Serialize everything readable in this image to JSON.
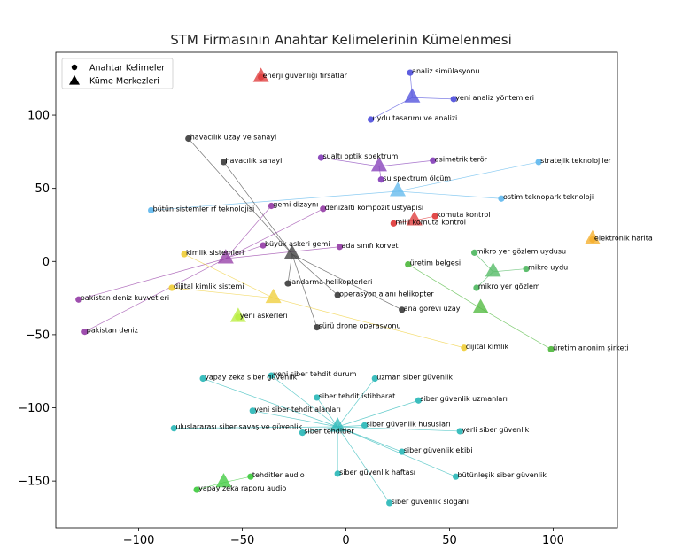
{
  "chart_data": {
    "type": "scatter",
    "title": "STM Firmasının Anahtar Kelimelerinin Kümelenmesi",
    "xlabel": "",
    "ylabel": "",
    "xlim": [
      -140,
      131
    ],
    "ylim": [
      -182,
      143
    ],
    "x_ticks": [
      -100,
      -50,
      0,
      50,
      100
    ],
    "y_ticks": [
      -150,
      -100,
      -50,
      0,
      50,
      100
    ],
    "x_tick_labels": [
      "−100",
      "−50",
      "0",
      "50",
      "100"
    ],
    "y_tick_labels": [
      "−150",
      "−100",
      "−50",
      "0",
      "50",
      "100"
    ],
    "grid": false,
    "legend": {
      "placement": "top-left",
      "items": [
        {
          "label": "Anahtar Kelimeler",
          "marker": "circle"
        },
        {
          "label": "Küme Merkezleri",
          "marker": "triangle"
        }
      ]
    },
    "clusters": [
      {
        "color": "#e04040",
        "center": [
          -41,
          126
        ],
        "points": [
          {
            "label": "enerji güvenliği fırsatlar",
            "x": -41,
            "y": 126
          }
        ]
      },
      {
        "color": "#5555dd",
        "center": [
          32,
          112
        ],
        "points": [
          {
            "label": "analiz simülasyonu",
            "x": 31,
            "y": 129
          },
          {
            "label": "yeni analiz yöntemleri",
            "x": 52,
            "y": 111
          },
          {
            "label": "uydu tasarımı ve analizi",
            "x": 12,
            "y": 97
          }
        ]
      },
      {
        "color": "#8844bb",
        "center": [
          16,
          65
        ],
        "points": [
          {
            "label": "sualtı optik spektrum",
            "x": -12,
            "y": 71
          },
          {
            "label": "asimetrik terör",
            "x": 42,
            "y": 69
          },
          {
            "label": "su spektrum ölçüm",
            "x": 17,
            "y": 56
          }
        ]
      },
      {
        "color": "#66bbee",
        "center": [
          25,
          48
        ],
        "points": [
          {
            "label": "stratejik teknolojiler",
            "x": 93,
            "y": 68
          },
          {
            "label": "ostim teknopark teknoloji",
            "x": 75,
            "y": 43
          },
          {
            "label": "bütün sistemler rf teknolojisi",
            "x": -94,
            "y": 35
          }
        ]
      },
      {
        "color": "#e04040",
        "center": [
          33,
          28
        ],
        "points": [
          {
            "label": "komuta kontrol",
            "x": 43,
            "y": 31
          },
          {
            "label": "milli komuta kontrol",
            "x": 23,
            "y": 26
          }
        ]
      },
      {
        "color": "#f5b030",
        "center": [
          119,
          15
        ],
        "points": [
          {
            "label": "elektronik harita",
            "x": 119,
            "y": 15
          }
        ]
      },
      {
        "color": "#55bb66",
        "center": [
          71,
          -7
        ],
        "points": [
          {
            "label": "mikro yer gözlem uydusu",
            "x": 62,
            "y": 6
          },
          {
            "label": "mikro uydu",
            "x": 87,
            "y": -5
          },
          {
            "label": "mikro yer gözlem",
            "x": 63,
            "y": -18
          }
        ]
      },
      {
        "color": "#55bb44",
        "center": [
          65,
          -32
        ],
        "points": [
          {
            "label": "üretim belgesi",
            "x": 30,
            "y": -2
          },
          {
            "label": "üretim anonim şirketi",
            "x": 99,
            "y": -60
          }
        ]
      },
      {
        "color": "#444444",
        "center": [
          -26,
          5
        ],
        "points": [
          {
            "label": "havacılık uzay ve sanayi",
            "x": -76,
            "y": 84
          },
          {
            "label": "havacılık sanayii",
            "x": -59,
            "y": 68
          },
          {
            "label": "jandarma helikopterleri",
            "x": -28,
            "y": -15
          },
          {
            "label": "operasyon alanı helikopter",
            "x": -4,
            "y": -23
          },
          {
            "label": "ana görevi uzay",
            "x": 27,
            "y": -33
          },
          {
            "label": "sürü drone operasyonu",
            "x": -14,
            "y": -45
          }
        ]
      },
      {
        "color": "#9944aa",
        "center": [
          -58,
          2
        ],
        "points": [
          {
            "label": "gemi dizaynı",
            "x": -36,
            "y": 38
          },
          {
            "label": "denizaltı kompozit üstyapısı",
            "x": -11,
            "y": 36
          },
          {
            "label": "büyük askeri gemi",
            "x": -40,
            "y": 11
          },
          {
            "label": "ada sınıfı korvet",
            "x": -3,
            "y": 10
          },
          {
            "label": "pakistan deniz kuvvetleri",
            "x": -129,
            "y": -26
          },
          {
            "label": "pakistan deniz",
            "x": -126,
            "y": -48
          }
        ]
      },
      {
        "color": "#f0d040",
        "center": [
          -35,
          -25
        ],
        "points": [
          {
            "label": "kimlik sistemleri",
            "x": -78,
            "y": 5
          },
          {
            "label": "dijital kimlik sistemi",
            "x": -84,
            "y": -18
          },
          {
            "label": "dijital kimlik",
            "x": 57,
            "y": -59
          }
        ]
      },
      {
        "color": "#bbee44",
        "center": [
          -52,
          -38
        ],
        "points": [
          {
            "label": "yeni askerleri",
            "x": -52,
            "y": -38
          }
        ]
      },
      {
        "color": "#33bbbb",
        "center": [
          -4,
          -113
        ],
        "points": [
          {
            "label": "yeni siber tehdit durum",
            "x": -36,
            "y": -78
          },
          {
            "label": "uzman siber güvenlik",
            "x": 14,
            "y": -80
          },
          {
            "label": "yapay zeka siber güvenlik",
            "x": -69,
            "y": -80
          },
          {
            "label": "siber tehdit istihbarat",
            "x": -14,
            "y": -93
          },
          {
            "label": "siber güvenlik uzmanları",
            "x": 35,
            "y": -95
          },
          {
            "label": "yeni siber tehdit alanları",
            "x": -45,
            "y": -102
          },
          {
            "label": "uluslararası siber savaş ve güvenlik",
            "x": -83,
            "y": -114
          },
          {
            "label": "siber güvenlik hususları",
            "x": 9,
            "y": -112
          },
          {
            "label": "siber tehditler",
            "x": -21,
            "y": -117
          },
          {
            "label": "yerli siber güvenlik",
            "x": 55,
            "y": -116
          },
          {
            "label": "siber güvenlik ekibi",
            "x": 27,
            "y": -130
          },
          {
            "label": "siber güvenlik haftası",
            "x": -4,
            "y": -145
          },
          {
            "label": "bütünleşik siber güvenlik",
            "x": 53,
            "y": -147
          },
          {
            "label": "siber güvenlik sloganı",
            "x": 21,
            "y": -165
          }
        ]
      },
      {
        "color": "#44cc44",
        "center": [
          -59,
          -151
        ],
        "points": [
          {
            "label": "tehditler audio",
            "x": -46,
            "y": -147
          },
          {
            "label": "yapay zeka raporu audio",
            "x": -72,
            "y": -156
          }
        ]
      }
    ]
  }
}
